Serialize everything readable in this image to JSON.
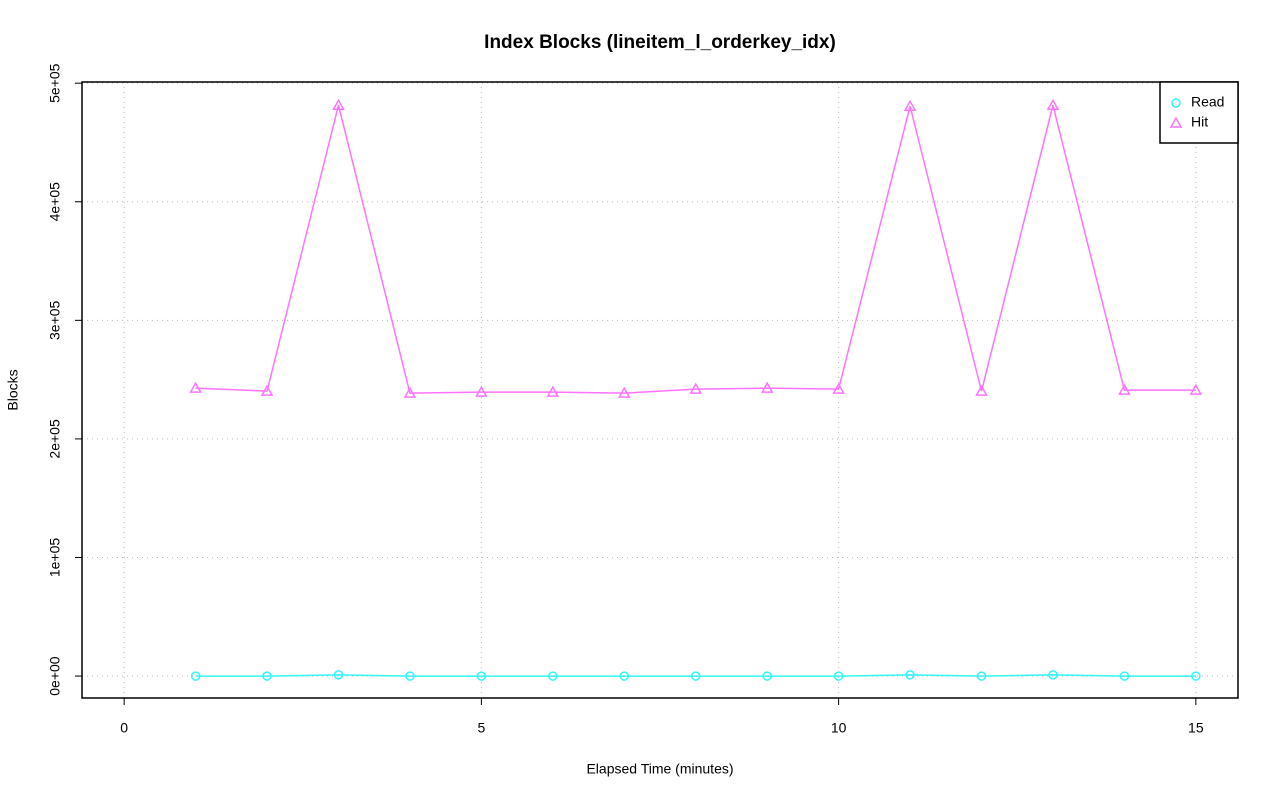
{
  "chart_data": {
    "type": "line",
    "title": "Index Blocks (lineitem_l_orderkey_idx)",
    "x_label": "Elapsed Time (minutes)",
    "y_label": "Blocks",
    "x": [
      1,
      2,
      3,
      4,
      5,
      6,
      7,
      8,
      9,
      10,
      11,
      12,
      13,
      14,
      15
    ],
    "series": [
      {
        "name": "Read",
        "color": "#33f5f5",
        "marker": "circle",
        "values": [
          0,
          0,
          1000,
          0,
          0,
          0,
          0,
          0,
          0,
          0,
          1000,
          0,
          1000,
          0,
          0
        ]
      },
      {
        "name": "Hit",
        "color": "#ff73ff",
        "marker": "triangle",
        "values": [
          242800,
          240300,
          481400,
          238600,
          239500,
          239500,
          238600,
          242000,
          242800,
          242000,
          480600,
          240300,
          481400,
          241100,
          241100
        ]
      }
    ],
    "xlim": [
      -0.59,
      15.59
    ],
    "xticks": [
      0,
      5,
      10,
      15
    ],
    "ylim": [
      -18500,
      501000
    ],
    "yticks": [
      {
        "value": 0,
        "label": "0e+00"
      },
      {
        "value": 100000,
        "label": "1e+05"
      },
      {
        "value": 200000,
        "label": "2e+05"
      },
      {
        "value": 300000,
        "label": "3e+05"
      },
      {
        "value": 400000,
        "label": "4e+05"
      },
      {
        "value": 500000,
        "label": "5e+05"
      }
    ],
    "grid": true,
    "legend": "top-right"
  }
}
